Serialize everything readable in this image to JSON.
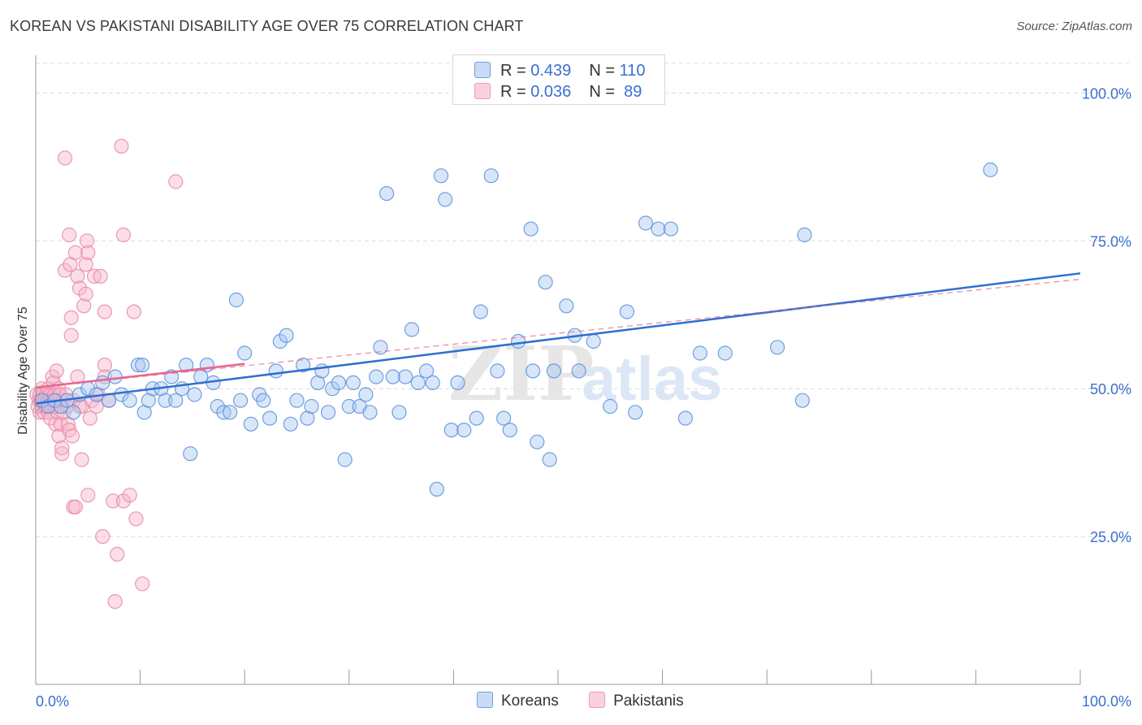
{
  "title": "KOREAN VS PAKISTANI DISABILITY AGE OVER 75 CORRELATION CHART",
  "source": "Source: ZipAtlas.com",
  "watermark": "ZIPatlas",
  "colors": {
    "korean_fill": "#a9c8f2",
    "korean_stroke": "#5b8fd9",
    "korean_line": "#2d6fd0",
    "pakistani_fill": "#f7b6c9",
    "pakistani_stroke": "#e88aa6",
    "pakistani_line": "#e8658e",
    "tick_label": "#3a6fd0",
    "grid": "#d9d9d9"
  },
  "legend": {
    "rows": [
      {
        "r_label": "R = ",
        "r_value": "0.439",
        "n_label": "N = ",
        "n_value": "110"
      },
      {
        "r_label": "R = ",
        "r_value": "0.036",
        "n_label": "N = ",
        "n_value": " 89"
      }
    ]
  },
  "chart_data": {
    "type": "scatter",
    "title": "KOREAN VS PAKISTANI DISABILITY AGE OVER 75 CORRELATION CHART",
    "xlabel": "",
    "ylabel": "Disability Age Over 75",
    "xlim": [
      0,
      100
    ],
    "ylim": [
      0,
      105
    ],
    "x_tick_labels": [
      "0.0%",
      "100.0%"
    ],
    "y_tick_labels": [
      "25.0%",
      "50.0%",
      "75.0%",
      "100.0%"
    ],
    "y_ticks": [
      25,
      50,
      75,
      100
    ],
    "grid": true,
    "legend_position": "top-center",
    "series": [
      {
        "name": "Koreans",
        "R": 0.439,
        "N": 110,
        "trend": {
          "x": [
            0,
            100
          ],
          "y": [
            47.5,
            69.5
          ],
          "style": "solid"
        },
        "points": [
          [
            0.6,
            48
          ],
          [
            1.2,
            47
          ],
          [
            1.8,
            48
          ],
          [
            2.4,
            47
          ],
          [
            3.0,
            48
          ],
          [
            3.6,
            46
          ],
          [
            4.2,
            49
          ],
          [
            5.0,
            50
          ],
          [
            5.8,
            49
          ],
          [
            6.4,
            51
          ],
          [
            7.0,
            48
          ],
          [
            7.6,
            52
          ],
          [
            8.2,
            49
          ],
          [
            9.0,
            48
          ],
          [
            9.8,
            54
          ],
          [
            10.2,
            54
          ],
          [
            10.4,
            46
          ],
          [
            10.8,
            48
          ],
          [
            11.2,
            50
          ],
          [
            12.0,
            50
          ],
          [
            12.4,
            48
          ],
          [
            13.0,
            52
          ],
          [
            13.4,
            48
          ],
          [
            14.0,
            50
          ],
          [
            14.4,
            54
          ],
          [
            14.8,
            39
          ],
          [
            15.2,
            49
          ],
          [
            15.8,
            52
          ],
          [
            16.4,
            54
          ],
          [
            17.0,
            51
          ],
          [
            17.4,
            47
          ],
          [
            18.0,
            46
          ],
          [
            18.6,
            46
          ],
          [
            19.2,
            65
          ],
          [
            19.6,
            48
          ],
          [
            20.0,
            56
          ],
          [
            20.6,
            44
          ],
          [
            21.4,
            49
          ],
          [
            21.8,
            48
          ],
          [
            22.4,
            45
          ],
          [
            23.0,
            53
          ],
          [
            23.4,
            58
          ],
          [
            24.0,
            59
          ],
          [
            24.4,
            44
          ],
          [
            25.0,
            48
          ],
          [
            25.6,
            54
          ],
          [
            26.0,
            45
          ],
          [
            26.4,
            47
          ],
          [
            27.0,
            51
          ],
          [
            27.4,
            53
          ],
          [
            28.0,
            46
          ],
          [
            28.4,
            50
          ],
          [
            29.0,
            51
          ],
          [
            29.6,
            38
          ],
          [
            30.0,
            47
          ],
          [
            30.4,
            51
          ],
          [
            31.0,
            47
          ],
          [
            31.6,
            49
          ],
          [
            32.0,
            46
          ],
          [
            32.6,
            52
          ],
          [
            33.0,
            57
          ],
          [
            33.6,
            83
          ],
          [
            34.2,
            52
          ],
          [
            34.8,
            46
          ],
          [
            35.4,
            52
          ],
          [
            36.0,
            60
          ],
          [
            36.6,
            51
          ],
          [
            37.4,
            53
          ],
          [
            38.0,
            51
          ],
          [
            38.4,
            33
          ],
          [
            38.8,
            86
          ],
          [
            39.2,
            82
          ],
          [
            39.8,
            43
          ],
          [
            40.4,
            51
          ],
          [
            41.0,
            43
          ],
          [
            42.2,
            45
          ],
          [
            42.6,
            63
          ],
          [
            43.6,
            86
          ],
          [
            44.2,
            53
          ],
          [
            44.8,
            45
          ],
          [
            45.4,
            43
          ],
          [
            46.2,
            58
          ],
          [
            47.4,
            77
          ],
          [
            47.6,
            53
          ],
          [
            48.0,
            41
          ],
          [
            48.8,
            68
          ],
          [
            49.2,
            38
          ],
          [
            49.6,
            53
          ],
          [
            50.8,
            64
          ],
          [
            51.6,
            59
          ],
          [
            52.0,
            53
          ],
          [
            53.4,
            58
          ],
          [
            55.0,
            47
          ],
          [
            56.6,
            63
          ],
          [
            57.4,
            46
          ],
          [
            58.4,
            78
          ],
          [
            59.6,
            77
          ],
          [
            60.8,
            77
          ],
          [
            62.2,
            45
          ],
          [
            63.6,
            56
          ],
          [
            66.0,
            56
          ],
          [
            71.0,
            57
          ],
          [
            73.6,
            76
          ],
          [
            73.4,
            48
          ],
          [
            91.4,
            87
          ]
        ]
      },
      {
        "name": "Pakistanis",
        "R": 0.036,
        "N": 89,
        "trend": {
          "x": [
            0,
            20
          ],
          "y": [
            50.2,
            54.2
          ],
          "style": "solid"
        },
        "trend_dashed": {
          "x": [
            0,
            100
          ],
          "y": [
            50.2,
            68.5
          ]
        },
        "points": [
          [
            0.1,
            49
          ],
          [
            0.2,
            47
          ],
          [
            0.3,
            48
          ],
          [
            0.4,
            49
          ],
          [
            0.4,
            46
          ],
          [
            0.5,
            48
          ],
          [
            0.6,
            47
          ],
          [
            0.6,
            50
          ],
          [
            0.7,
            49
          ],
          [
            0.8,
            46
          ],
          [
            0.8,
            48
          ],
          [
            0.9,
            47
          ],
          [
            1.0,
            49
          ],
          [
            1.0,
            47
          ],
          [
            1.1,
            48
          ],
          [
            1.2,
            50
          ],
          [
            1.2,
            46
          ],
          [
            1.3,
            48
          ],
          [
            1.4,
            49
          ],
          [
            1.4,
            45
          ],
          [
            1.5,
            47
          ],
          [
            1.6,
            52
          ],
          [
            1.6,
            48
          ],
          [
            1.7,
            51
          ],
          [
            1.8,
            49
          ],
          [
            1.8,
            47
          ],
          [
            1.9,
            44
          ],
          [
            2.0,
            53
          ],
          [
            2.0,
            48
          ],
          [
            2.1,
            46
          ],
          [
            2.2,
            50
          ],
          [
            2.2,
            42
          ],
          [
            2.3,
            49
          ],
          [
            2.4,
            47
          ],
          [
            2.4,
            44
          ],
          [
            2.5,
            39
          ],
          [
            2.5,
            40
          ],
          [
            2.6,
            48
          ],
          [
            2.7,
            46
          ],
          [
            2.8,
            70
          ],
          [
            2.8,
            89
          ],
          [
            2.9,
            49
          ],
          [
            3.0,
            47
          ],
          [
            3.1,
            44
          ],
          [
            3.2,
            43
          ],
          [
            3.2,
            76
          ],
          [
            3.3,
            71
          ],
          [
            3.4,
            62
          ],
          [
            3.4,
            59
          ],
          [
            3.5,
            42
          ],
          [
            3.6,
            48
          ],
          [
            3.6,
            30
          ],
          [
            3.8,
            30
          ],
          [
            3.8,
            73
          ],
          [
            4.0,
            52
          ],
          [
            4.0,
            69
          ],
          [
            4.2,
            67
          ],
          [
            4.2,
            47
          ],
          [
            4.4,
            47
          ],
          [
            4.4,
            38
          ],
          [
            4.6,
            64
          ],
          [
            4.8,
            71
          ],
          [
            4.8,
            66
          ],
          [
            4.9,
            75
          ],
          [
            5.0,
            73
          ],
          [
            5.0,
            32
          ],
          [
            5.2,
            45
          ],
          [
            5.4,
            48
          ],
          [
            5.6,
            69
          ],
          [
            5.8,
            47
          ],
          [
            6.0,
            49
          ],
          [
            6.2,
            69
          ],
          [
            6.4,
            25
          ],
          [
            6.6,
            63
          ],
          [
            6.6,
            54
          ],
          [
            6.6,
            52
          ],
          [
            7.0,
            48
          ],
          [
            7.4,
            31
          ],
          [
            7.6,
            14
          ],
          [
            7.8,
            22
          ],
          [
            8.2,
            91
          ],
          [
            8.4,
            31
          ],
          [
            8.4,
            76
          ],
          [
            9.0,
            32
          ],
          [
            9.4,
            63
          ],
          [
            9.6,
            28
          ],
          [
            10.2,
            17
          ],
          [
            13.4,
            85
          ]
        ]
      }
    ]
  }
}
